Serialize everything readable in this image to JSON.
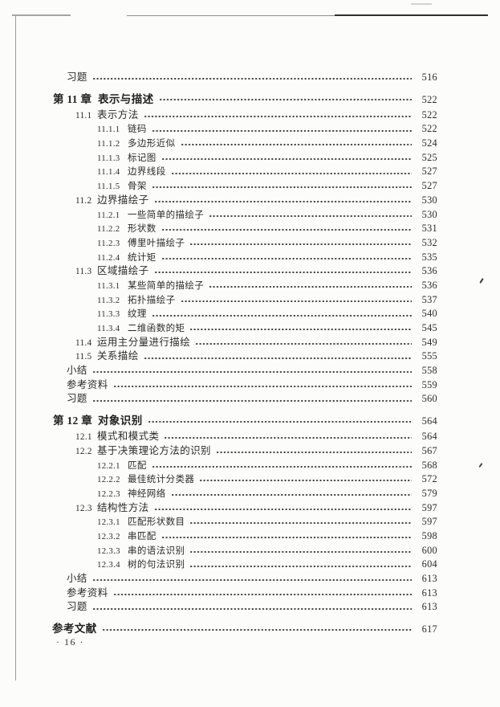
{
  "theme": {
    "paper_color": "#fcfcfa",
    "ink_color": "#2b2b2b"
  },
  "page": {
    "footer_page_number": "· 16 ·"
  },
  "toc": {
    "rows": [
      {
        "type": "misc",
        "label": "习题",
        "page": "516"
      },
      {
        "type": "chapter",
        "num": "第 11 章",
        "title": "表示与描述",
        "page": "522"
      },
      {
        "type": "section",
        "num": "11.1",
        "title": "表示方法",
        "page": "522"
      },
      {
        "type": "subsection",
        "num": "11.1.1",
        "title": "链码",
        "page": "522"
      },
      {
        "type": "subsection",
        "num": "11.1.2",
        "title": "多边形近似",
        "page": "524"
      },
      {
        "type": "subsection",
        "num": "11.1.3",
        "title": "标记图",
        "page": "525"
      },
      {
        "type": "subsection",
        "num": "11.1.4",
        "title": "边界线段",
        "page": "527"
      },
      {
        "type": "subsection",
        "num": "11.1.5",
        "title": "骨架",
        "page": "527"
      },
      {
        "type": "section",
        "num": "11.2",
        "title": "边界描绘子",
        "page": "530"
      },
      {
        "type": "subsection",
        "num": "11.2.1",
        "title": "一些简单的描绘子",
        "page": "530"
      },
      {
        "type": "subsection",
        "num": "11.2.2",
        "title": "形状数",
        "page": "531"
      },
      {
        "type": "subsection",
        "num": "11.2.3",
        "title": "傅里叶描绘子",
        "page": "532"
      },
      {
        "type": "subsection",
        "num": "11.2.4",
        "title": "统计矩",
        "page": "535"
      },
      {
        "type": "section",
        "num": "11.3",
        "title": "区域描绘子",
        "page": "536"
      },
      {
        "type": "subsection",
        "num": "11.3.1",
        "title": "某些简单的描绘子",
        "page": "536"
      },
      {
        "type": "subsection",
        "num": "11.3.2",
        "title": "拓扑描绘子",
        "page": "537"
      },
      {
        "type": "subsection",
        "num": "11.3.3",
        "title": "纹理",
        "page": "540"
      },
      {
        "type": "subsection",
        "num": "11.3.4",
        "title": "二维函数的矩",
        "page": "545"
      },
      {
        "type": "section",
        "num": "11.4",
        "title": "运用主分量进行描绘",
        "page": "549"
      },
      {
        "type": "section",
        "num": "11.5",
        "title": "关系描绘",
        "page": "555"
      },
      {
        "type": "misc",
        "label": "小结",
        "page": "558"
      },
      {
        "type": "misc",
        "label": "参考资料",
        "page": "559"
      },
      {
        "type": "misc",
        "label": "习题",
        "page": "560"
      },
      {
        "type": "chapter",
        "num": "第 12 章",
        "title": "对象识别",
        "page": "564"
      },
      {
        "type": "section",
        "num": "12.1",
        "title": "模式和模式类",
        "page": "564"
      },
      {
        "type": "section",
        "num": "12.2",
        "title": "基于决策理论方法的识别",
        "page": "567"
      },
      {
        "type": "subsection",
        "num": "12.2.1",
        "title": "匹配",
        "page": "568"
      },
      {
        "type": "subsection",
        "num": "12.2.2",
        "title": "最佳统计分类器",
        "page": "572"
      },
      {
        "type": "subsection",
        "num": "12.2.3",
        "title": "神经网络",
        "page": "579"
      },
      {
        "type": "section",
        "num": "12.3",
        "title": "结构性方法",
        "page": "597"
      },
      {
        "type": "subsection",
        "num": "12.3.1",
        "title": "匹配形状数目",
        "page": "597"
      },
      {
        "type": "subsection",
        "num": "12.3.2",
        "title": "串匹配",
        "page": "598"
      },
      {
        "type": "subsection",
        "num": "12.3.3",
        "title": "串的语法识别",
        "page": "600"
      },
      {
        "type": "subsection",
        "num": "12.3.4",
        "title": "树的句法识别",
        "page": "604"
      },
      {
        "type": "misc",
        "label": "小结",
        "page": "613"
      },
      {
        "type": "misc",
        "label": "参考资料",
        "page": "613"
      },
      {
        "type": "misc",
        "label": "习题",
        "page": "613"
      },
      {
        "type": "backmatter",
        "label": "参考文献",
        "page": "617"
      }
    ]
  }
}
